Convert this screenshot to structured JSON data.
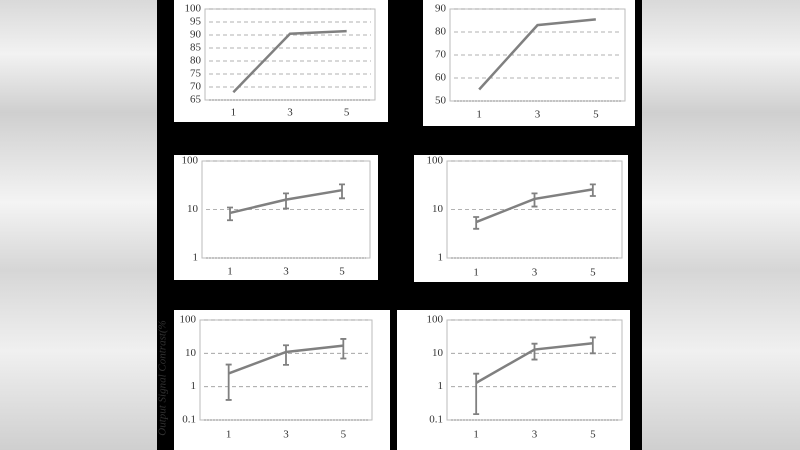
{
  "chart_data": [
    {
      "type": "line",
      "categories": [
        "1",
        "3",
        "5"
      ],
      "values": [
        68,
        90.5,
        91.5
      ],
      "color": "#808080",
      "ylim": [
        65,
        100
      ],
      "yticks": [
        65,
        70,
        75,
        80,
        85,
        90,
        95,
        100
      ],
      "log": false,
      "grid": true
    },
    {
      "type": "line",
      "categories": [
        "1",
        "3",
        "5"
      ],
      "values": [
        55,
        83,
        85.5
      ],
      "color": "#808080",
      "ylim": [
        50,
        90
      ],
      "yticks": [
        50,
        60,
        70,
        80,
        90
      ],
      "log": false,
      "grid": true
    },
    {
      "type": "line",
      "categories": [
        "1",
        "3",
        "5"
      ],
      "values": [
        8.5,
        16,
        25
      ],
      "errors": [
        2.5,
        5.5,
        8
      ],
      "color": "#808080",
      "ylim": [
        1,
        100
      ],
      "yticks": [
        1,
        10,
        100
      ],
      "log": true,
      "grid": true
    },
    {
      "type": "line",
      "categories": [
        "1",
        "3",
        "5"
      ],
      "values": [
        5.5,
        16.5,
        26
      ],
      "errors": [
        1.5,
        5,
        7
      ],
      "color": "#808080",
      "ylim": [
        1,
        100
      ],
      "yticks": [
        1,
        10,
        100
      ],
      "log": true,
      "grid": true
    },
    {
      "type": "line",
      "categories": [
        "1",
        "3",
        "5"
      ],
      "values": [
        2.5,
        11,
        17
      ],
      "errors": [
        2.1,
        6.5,
        10
      ],
      "color": "#808080",
      "ylim": [
        0.1,
        100
      ],
      "yticks": [
        0.1,
        1,
        10,
        100
      ],
      "log": true,
      "grid": true,
      "ylabel": "Output Signal Contrast(%"
    },
    {
      "type": "line",
      "categories": [
        "1",
        "3",
        "5"
      ],
      "values": [
        1.3,
        13,
        20
      ],
      "errors": [
        1.15,
        6.5,
        10
      ],
      "color": "#808080",
      "ylim": [
        0.1,
        100
      ],
      "yticks": [
        0.1,
        1,
        10,
        100
      ],
      "log": true,
      "grid": true
    }
  ]
}
